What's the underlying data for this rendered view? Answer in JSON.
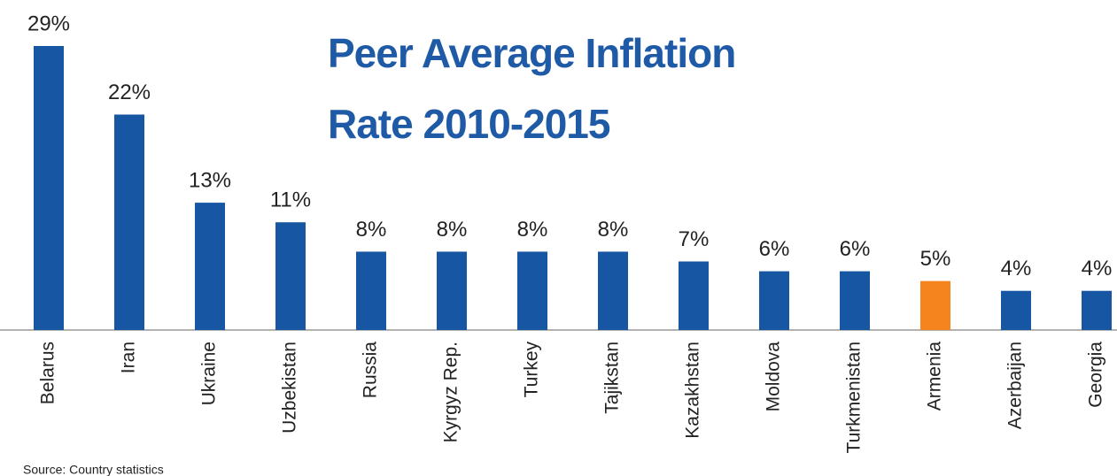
{
  "chart_data": {
    "type": "bar",
    "title": "Peer Average Inflation Rate 2010-2015",
    "categories": [
      "Belarus",
      "Iran",
      "Ukraine",
      "Uzbekistan",
      "Russia",
      "Kyrgyz Rep.",
      "Turkey",
      "Tajikstan",
      "Kazakhstan",
      "Moldova",
      "Turkmenistan",
      "Armenia",
      "Azerbaijan",
      "Georgia"
    ],
    "values": [
      29,
      22,
      13,
      11,
      8,
      8,
      8,
      8,
      7,
      6,
      6,
      5,
      4,
      4
    ],
    "value_labels": [
      "29%",
      "22%",
      "13%",
      "11%",
      "8%",
      "8%",
      "8%",
      "8%",
      "7%",
      "6%",
      "6%",
      "5%",
      "4%",
      "4%"
    ],
    "colors": [
      "#1656a3",
      "#1656a3",
      "#1656a3",
      "#1656a3",
      "#1656a3",
      "#1656a3",
      "#1656a3",
      "#1656a3",
      "#1656a3",
      "#1656a3",
      "#1656a3",
      "#f5841f",
      "#1656a3",
      "#1656a3"
    ],
    "source": "Source: Country statistics"
  }
}
